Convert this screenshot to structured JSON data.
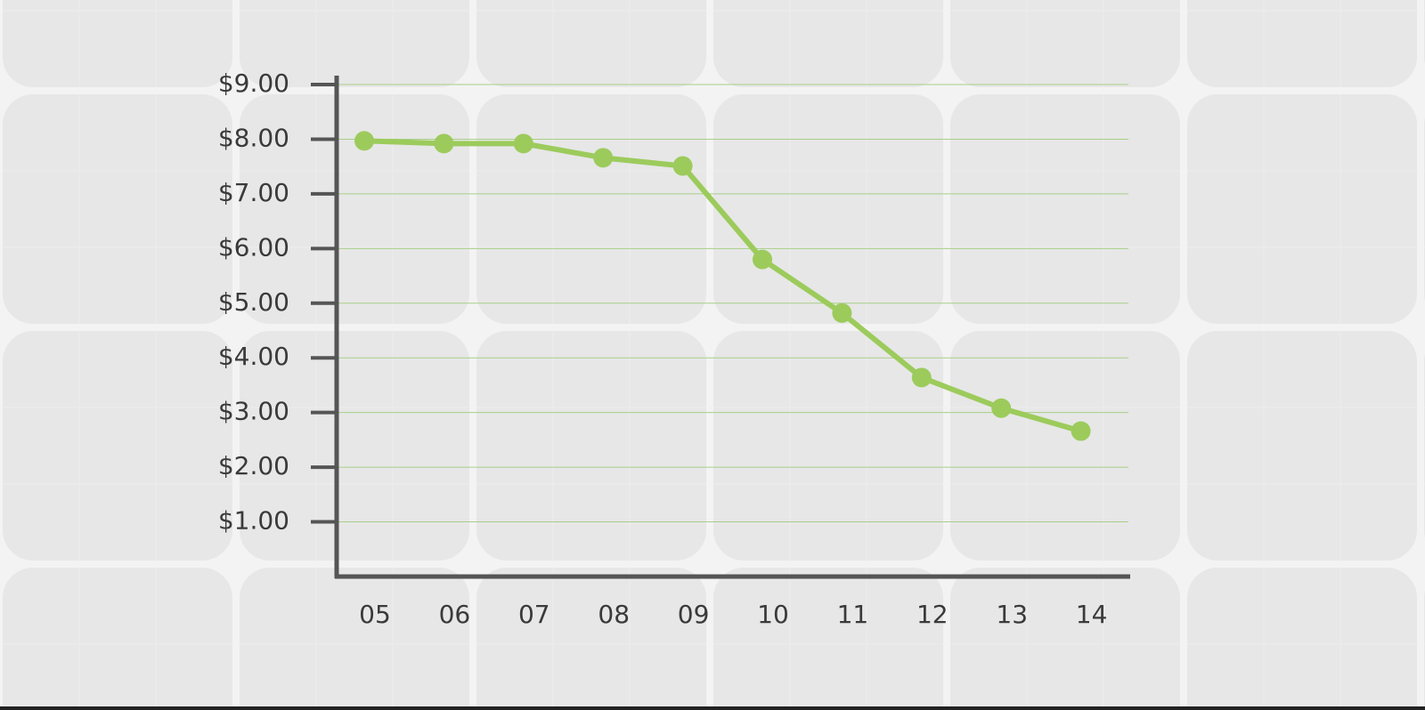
{
  "chart_data": {
    "type": "line",
    "categories": [
      "05",
      "06",
      "07",
      "08",
      "09",
      "10",
      "11",
      "12",
      "13",
      "14"
    ],
    "values": [
      7.97,
      7.92,
      7.92,
      7.66,
      7.51,
      5.8,
      4.82,
      3.64,
      3.08,
      2.66
    ],
    "color": "#9ccb5c",
    "ylim": [
      0,
      9
    ],
    "yticks": [
      {
        "value": 1,
        "label": "$1.00"
      },
      {
        "value": 2,
        "label": "$2.00"
      },
      {
        "value": 3,
        "label": "$3.00"
      },
      {
        "value": 4,
        "label": "$4.00"
      },
      {
        "value": 5,
        "label": "$5.00"
      },
      {
        "value": 6,
        "label": "$6.00"
      },
      {
        "value": 7,
        "label": "$7.00"
      },
      {
        "value": 8,
        "label": "$8.00"
      },
      {
        "value": 9,
        "label": "$9.00"
      }
    ],
    "grid": true
  }
}
